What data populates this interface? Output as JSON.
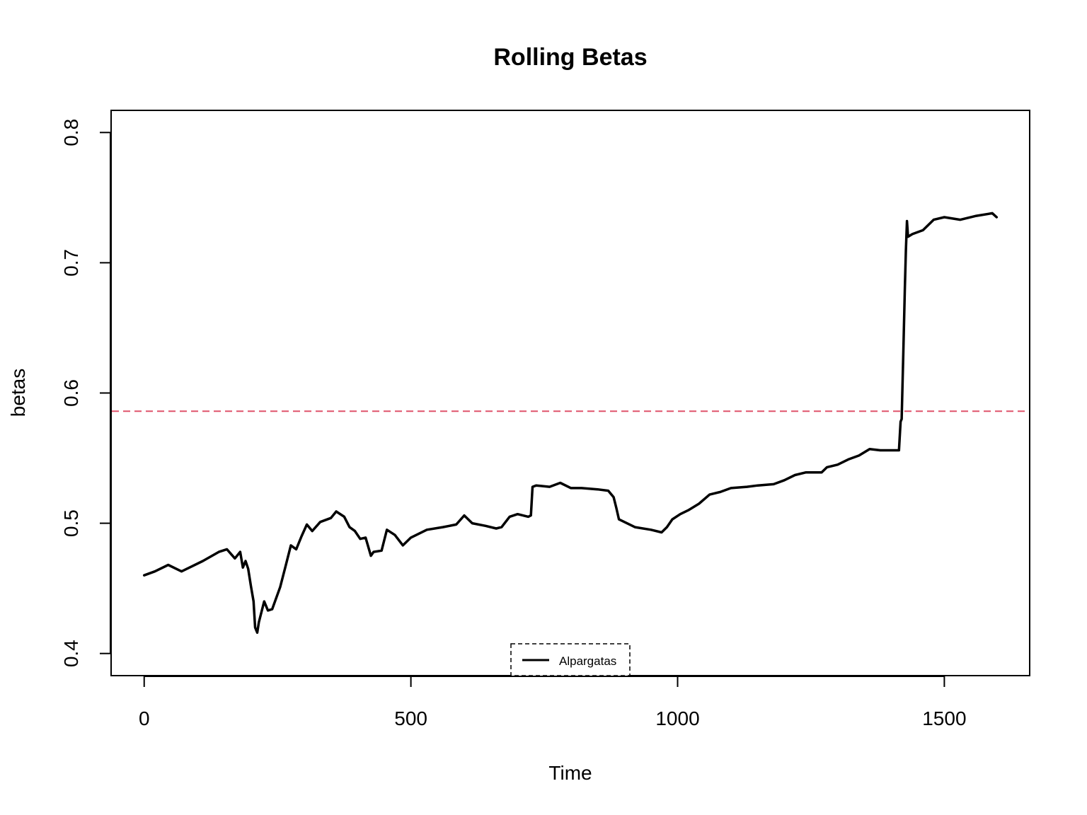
{
  "chart_data": {
    "type": "line",
    "title": "Rolling Betas",
    "xlabel": "Time",
    "ylabel": "betas",
    "xlim": [
      -62,
      1660
    ],
    "ylim": [
      0.383,
      0.817
    ],
    "x_ticks": [
      0,
      500,
      1000,
      1500
    ],
    "x_tick_labels": [
      "0",
      "500",
      "1000",
      "1500"
    ],
    "y_ticks": [
      0.4,
      0.5,
      0.6,
      0.7,
      0.8
    ],
    "y_tick_labels": [
      "0.4",
      "0.5",
      "0.6",
      "0.7",
      "0.8"
    ],
    "grid": false,
    "legend": {
      "position": "bottom",
      "entries": [
        "Alpargatas"
      ]
    },
    "reference_line": {
      "y": 0.586,
      "color": "#DF536B",
      "style": "dashed"
    },
    "series": [
      {
        "name": "Alpargatas",
        "color": "#000000",
        "x": [
          0,
          20,
          45,
          70,
          85,
          110,
          140,
          155,
          170,
          180,
          185,
          190,
          195,
          200,
          205,
          208,
          212,
          215,
          225,
          232,
          240,
          255,
          265,
          275,
          285,
          295,
          305,
          315,
          330,
          350,
          360,
          375,
          385,
          395,
          405,
          415,
          425,
          430,
          445,
          455,
          470,
          485,
          500,
          530,
          560,
          585,
          600,
          615,
          640,
          660,
          670,
          685,
          700,
          720,
          725,
          728,
          735,
          760,
          780,
          800,
          820,
          850,
          870,
          880,
          885,
          890,
          905,
          920,
          950,
          970,
          980,
          990,
          1005,
          1020,
          1040,
          1060,
          1080,
          1100,
          1130,
          1150,
          1180,
          1200,
          1220,
          1240,
          1270,
          1280,
          1300,
          1320,
          1340,
          1360,
          1380,
          1400,
          1415,
          1418,
          1420,
          1423,
          1426,
          1428,
          1430,
          1432,
          1440,
          1460,
          1480,
          1500,
          1530,
          1560,
          1590,
          1598
        ],
        "y": [
          0.46,
          0.463,
          0.468,
          0.463,
          0.466,
          0.471,
          0.478,
          0.48,
          0.473,
          0.478,
          0.466,
          0.471,
          0.465,
          0.452,
          0.44,
          0.42,
          0.416,
          0.424,
          0.44,
          0.433,
          0.434,
          0.451,
          0.467,
          0.483,
          0.48,
          0.49,
          0.499,
          0.494,
          0.501,
          0.504,
          0.509,
          0.505,
          0.497,
          0.494,
          0.488,
          0.489,
          0.475,
          0.478,
          0.479,
          0.495,
          0.491,
          0.483,
          0.489,
          0.495,
          0.497,
          0.499,
          0.506,
          0.5,
          0.498,
          0.496,
          0.497,
          0.505,
          0.507,
          0.505,
          0.506,
          0.528,
          0.529,
          0.528,
          0.531,
          0.527,
          0.527,
          0.526,
          0.525,
          0.52,
          0.512,
          0.503,
          0.5,
          0.497,
          0.495,
          0.493,
          0.497,
          0.503,
          0.507,
          0.51,
          0.515,
          0.522,
          0.524,
          0.527,
          0.528,
          0.529,
          0.53,
          0.533,
          0.537,
          0.539,
          0.539,
          0.543,
          0.545,
          0.549,
          0.552,
          0.557,
          0.556,
          0.556,
          0.556,
          0.578,
          0.58,
          0.63,
          0.68,
          0.71,
          0.732,
          0.72,
          0.722,
          0.725,
          0.733,
          0.735,
          0.733,
          0.736,
          0.738,
          0.735
        ]
      }
    ]
  }
}
